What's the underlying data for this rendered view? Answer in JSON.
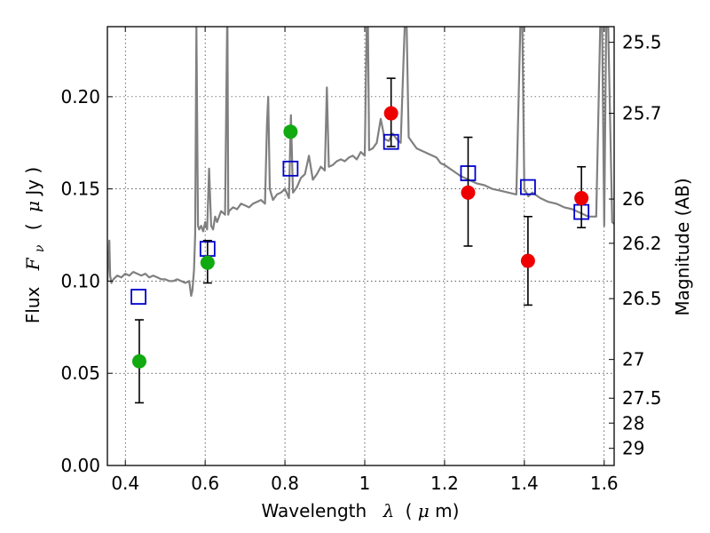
{
  "chart_data": {
    "type": "scatter",
    "xlabel": {
      "prefix": "Wavelength",
      "symbol": "λ",
      "unit_open": "(",
      "unit_mu": "μ",
      "unit_rest": "m)"
    },
    "ylabel": {
      "prefix": "Flux",
      "symbol": "F",
      "subscript": "ν",
      "unit_open": "(",
      "unit_mu": "μ",
      "unit_rest": "Jy )"
    },
    "y2label": "Magnitude (AB)",
    "xlim": [
      0.355,
      1.625
    ],
    "ylim": [
      0.0,
      0.238
    ],
    "grid": true,
    "x_ticks": [
      {
        "value": 0.4,
        "label": "0.4"
      },
      {
        "value": 0.6,
        "label": "0.6"
      },
      {
        "value": 0.8,
        "label": "0.8"
      },
      {
        "value": 1.0,
        "label": "1"
      },
      {
        "value": 1.2,
        "label": "1.2"
      },
      {
        "value": 1.4,
        "label": "1.4"
      },
      {
        "value": 1.6,
        "label": "1.6"
      }
    ],
    "y_ticks": [
      {
        "value": 0.0,
        "label": "0.00"
      },
      {
        "value": 0.05,
        "label": "0.05"
      },
      {
        "value": 0.1,
        "label": "0.10"
      },
      {
        "value": 0.15,
        "label": "0.15"
      },
      {
        "value": 0.2,
        "label": "0.20"
      }
    ],
    "mag_ticks": [
      {
        "value": 0.2295,
        "label": "25.5"
      },
      {
        "value": 0.191,
        "label": "25.7"
      },
      {
        "value": 0.1445,
        "label": "26"
      },
      {
        "value": 0.1205,
        "label": "26.2"
      },
      {
        "value": 0.0905,
        "label": "26.5"
      },
      {
        "value": 0.0575,
        "label": "27"
      },
      {
        "value": 0.0365,
        "label": "27.5"
      },
      {
        "value": 0.023,
        "label": "28"
      },
      {
        "value": 0.0093,
        "label": "29"
      }
    ],
    "colors": {
      "model": "#808080",
      "green": "#11aa11",
      "red": "#ee0000",
      "square": "#0000cc",
      "errorbar": "#000000"
    },
    "model_spectrum": {
      "x": [
        0.355,
        0.36,
        0.362,
        0.365,
        0.37,
        0.38,
        0.39,
        0.4,
        0.41,
        0.42,
        0.43,
        0.44,
        0.45,
        0.46,
        0.47,
        0.48,
        0.49,
        0.5,
        0.51,
        0.52,
        0.53,
        0.54,
        0.55,
        0.56,
        0.565,
        0.568,
        0.572,
        0.575,
        0.578,
        0.582,
        0.585,
        0.59,
        0.595,
        0.6,
        0.605,
        0.61,
        0.615,
        0.62,
        0.625,
        0.63,
        0.64,
        0.65,
        0.655,
        0.656,
        0.658,
        0.66,
        0.67,
        0.68,
        0.69,
        0.7,
        0.71,
        0.72,
        0.73,
        0.74,
        0.75,
        0.755,
        0.758,
        0.762,
        0.77,
        0.78,
        0.79,
        0.8,
        0.81,
        0.815,
        0.82,
        0.83,
        0.84,
        0.85,
        0.86,
        0.87,
        0.88,
        0.89,
        0.9,
        0.905,
        0.91,
        0.92,
        0.93,
        0.94,
        0.95,
        0.96,
        0.97,
        0.98,
        0.99,
        1.0,
        1.005,
        1.008,
        1.011,
        1.02,
        1.03,
        1.04,
        1.05,
        1.06,
        1.07,
        1.08,
        1.09,
        1.1,
        1.105,
        1.11,
        1.12,
        1.13,
        1.14,
        1.15,
        1.16,
        1.17,
        1.18,
        1.19,
        1.2,
        1.22,
        1.24,
        1.26,
        1.28,
        1.3,
        1.32,
        1.34,
        1.36,
        1.38,
        1.39,
        1.395,
        1.4,
        1.41,
        1.42,
        1.44,
        1.46,
        1.48,
        1.5,
        1.52,
        1.54,
        1.56,
        1.58,
        1.59,
        1.595,
        1.6,
        1.605,
        1.61,
        1.62,
        1.625
      ],
      "y": [
        0.1,
        0.122,
        0.103,
        0.099,
        0.101,
        0.103,
        0.102,
        0.104,
        0.103,
        0.105,
        0.104,
        0.103,
        0.104,
        0.102,
        0.103,
        0.102,
        0.101,
        0.101,
        0.1,
        0.1,
        0.101,
        0.1,
        0.099,
        0.1,
        0.092,
        0.095,
        0.106,
        0.125,
        0.238,
        0.13,
        0.128,
        0.13,
        0.127,
        0.132,
        0.128,
        0.161,
        0.13,
        0.128,
        0.135,
        0.132,
        0.138,
        0.136,
        0.238,
        0.238,
        0.136,
        0.138,
        0.14,
        0.139,
        0.142,
        0.141,
        0.14,
        0.142,
        0.143,
        0.144,
        0.142,
        0.185,
        0.2,
        0.15,
        0.144,
        0.147,
        0.148,
        0.15,
        0.145,
        0.19,
        0.148,
        0.151,
        0.156,
        0.158,
        0.168,
        0.155,
        0.158,
        0.162,
        0.16,
        0.205,
        0.162,
        0.163,
        0.165,
        0.166,
        0.165,
        0.167,
        0.168,
        0.166,
        0.17,
        0.168,
        0.238,
        0.238,
        0.171,
        0.172,
        0.175,
        0.188,
        0.177,
        0.176,
        0.18,
        0.177,
        0.175,
        0.238,
        0.238,
        0.178,
        0.175,
        0.172,
        0.171,
        0.17,
        0.169,
        0.168,
        0.167,
        0.164,
        0.163,
        0.16,
        0.157,
        0.155,
        0.153,
        0.152,
        0.15,
        0.149,
        0.148,
        0.147,
        0.238,
        0.238,
        0.15,
        0.146,
        0.148,
        0.145,
        0.143,
        0.142,
        0.14,
        0.139,
        0.137,
        0.135,
        0.135,
        0.238,
        0.238,
        0.13,
        0.238,
        0.238,
        0.132,
        0.131
      ]
    },
    "green_points": [
      {
        "x": 0.435,
        "y": 0.0565,
        "err_lo": 0.034,
        "err_hi": 0.079
      },
      {
        "x": 0.606,
        "y": 0.11,
        "err_lo": 0.099,
        "err_hi": 0.122
      },
      {
        "x": 0.814,
        "y": 0.181
      }
    ],
    "red_points": [
      {
        "x": 1.066,
        "y": 0.191,
        "err_lo": 0.173,
        "err_hi": 0.21
      },
      {
        "x": 1.259,
        "y": 0.148,
        "err_lo": 0.119,
        "err_hi": 0.178
      },
      {
        "x": 1.409,
        "y": 0.111,
        "err_lo": 0.087,
        "err_hi": 0.135
      },
      {
        "x": 1.543,
        "y": 0.145,
        "err_lo": 0.129,
        "err_hi": 0.162
      }
    ],
    "model_squares": [
      {
        "x": 0.433,
        "y": 0.0915
      },
      {
        "x": 0.606,
        "y": 0.1175
      },
      {
        "x": 0.814,
        "y": 0.161
      },
      {
        "x": 1.066,
        "y": 0.1755
      },
      {
        "x": 1.259,
        "y": 0.1585
      },
      {
        "x": 1.409,
        "y": 0.151
      },
      {
        "x": 1.543,
        "y": 0.1375
      }
    ]
  }
}
